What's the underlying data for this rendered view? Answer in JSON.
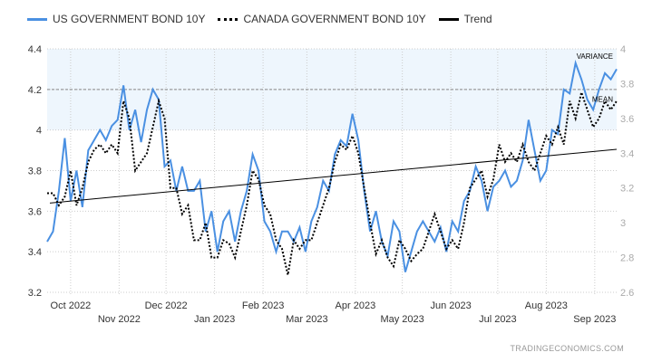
{
  "legend": [
    {
      "label": "US GOVERNMENT BOND 10Y",
      "color": "#4a90e2",
      "style": "solid"
    },
    {
      "label": "CANADA GOVERNMENT BOND 10Y",
      "color": "#000000",
      "style": "dotted"
    },
    {
      "label": "Trend",
      "color": "#000000",
      "style": "solid"
    }
  ],
  "watermark": "TRADINGECONOMICS.COM",
  "chart_data": {
    "type": "line",
    "x_start": "2022-09-16",
    "x_end": "2023-09-15",
    "x_ticks_row1": [
      "Oct 2022",
      "Dec 2022",
      "Feb 2023",
      "Apr 2023",
      "Jun 2023",
      "Aug 2023"
    ],
    "x_ticks_row2": [
      "Nov 2022",
      "Jan 2023",
      "Mar 2023",
      "May 2023",
      "Jul 2023",
      "Sep 2023"
    ],
    "y_left": {
      "ticks": [
        "3.2",
        "3.4",
        "3.6",
        "3.8",
        "4",
        "4.2",
        "4.4"
      ],
      "range": [
        3.2,
        4.4
      ]
    },
    "y_right": {
      "ticks": [
        "2.6",
        "2.8",
        "3",
        "3.2",
        "3.4",
        "3.6",
        "3.8",
        "4"
      ],
      "range": [
        2.6,
        4.0
      ]
    },
    "variance_band": [
      4.0,
      4.4
    ],
    "mean_line": 4.2,
    "annotations": [
      "VARIANCE",
      "MEAN"
    ],
    "series": [
      {
        "name": "US GOVERNMENT BOND 10Y",
        "axis": "left",
        "color": "#4a90e2",
        "values": [
          3.45,
          3.5,
          3.7,
          3.96,
          3.65,
          3.8,
          3.62,
          3.9,
          3.95,
          4.0,
          3.95,
          4.02,
          4.05,
          4.22,
          4.0,
          4.1,
          3.94,
          4.1,
          4.2,
          4.15,
          3.82,
          3.85,
          3.7,
          3.82,
          3.7,
          3.7,
          3.75,
          3.5,
          3.6,
          3.4,
          3.55,
          3.6,
          3.45,
          3.6,
          3.7,
          3.88,
          3.8,
          3.55,
          3.5,
          3.4,
          3.5,
          3.5,
          3.45,
          3.52,
          3.4,
          3.55,
          3.62,
          3.75,
          3.7,
          3.88,
          3.95,
          3.92,
          4.08,
          3.95,
          3.7,
          3.5,
          3.6,
          3.45,
          3.38,
          3.55,
          3.5,
          3.3,
          3.4,
          3.5,
          3.55,
          3.5,
          3.45,
          3.52,
          3.4,
          3.55,
          3.5,
          3.65,
          3.7,
          3.82,
          3.75,
          3.6,
          3.72,
          3.75,
          3.8,
          3.72,
          3.75,
          3.85,
          4.05,
          3.9,
          3.75,
          3.8,
          4.0,
          3.98,
          4.2,
          4.18,
          4.33,
          4.25,
          4.15,
          4.1,
          4.2,
          4.28,
          4.25,
          4.3
        ]
      },
      {
        "name": "CANADA GOVERNMENT BOND 10Y",
        "axis": "right",
        "color": "#000000",
        "values": [
          3.17,
          3.17,
          3.1,
          3.15,
          3.3,
          3.1,
          3.2,
          3.35,
          3.42,
          3.45,
          3.4,
          3.45,
          3.4,
          3.7,
          3.6,
          3.3,
          3.35,
          3.4,
          3.55,
          3.7,
          3.6,
          3.2,
          3.2,
          3.05,
          3.1,
          2.9,
          2.9,
          3.0,
          2.8,
          2.8,
          2.9,
          2.88,
          2.8,
          2.95,
          3.1,
          3.3,
          3.25,
          3.1,
          3.05,
          2.9,
          2.85,
          2.7,
          2.9,
          2.85,
          2.9,
          2.9,
          3.0,
          3.1,
          3.2,
          3.35,
          3.45,
          3.42,
          3.5,
          3.4,
          3.2,
          3.0,
          2.82,
          2.9,
          2.8,
          2.75,
          2.9,
          2.85,
          2.78,
          2.82,
          2.85,
          2.95,
          3.05,
          2.95,
          2.85,
          2.9,
          2.85,
          3.0,
          3.2,
          3.25,
          3.3,
          3.15,
          3.25,
          3.45,
          3.35,
          3.4,
          3.35,
          3.45,
          3.35,
          3.3,
          3.4,
          3.5,
          3.45,
          3.55,
          3.45,
          3.7,
          3.6,
          3.75,
          3.65,
          3.55,
          3.6,
          3.7,
          3.65,
          3.7
        ]
      },
      {
        "name": "Trend",
        "axis": "left",
        "color": "#000000",
        "values": [
          3.64,
          3.905
        ]
      }
    ]
  }
}
